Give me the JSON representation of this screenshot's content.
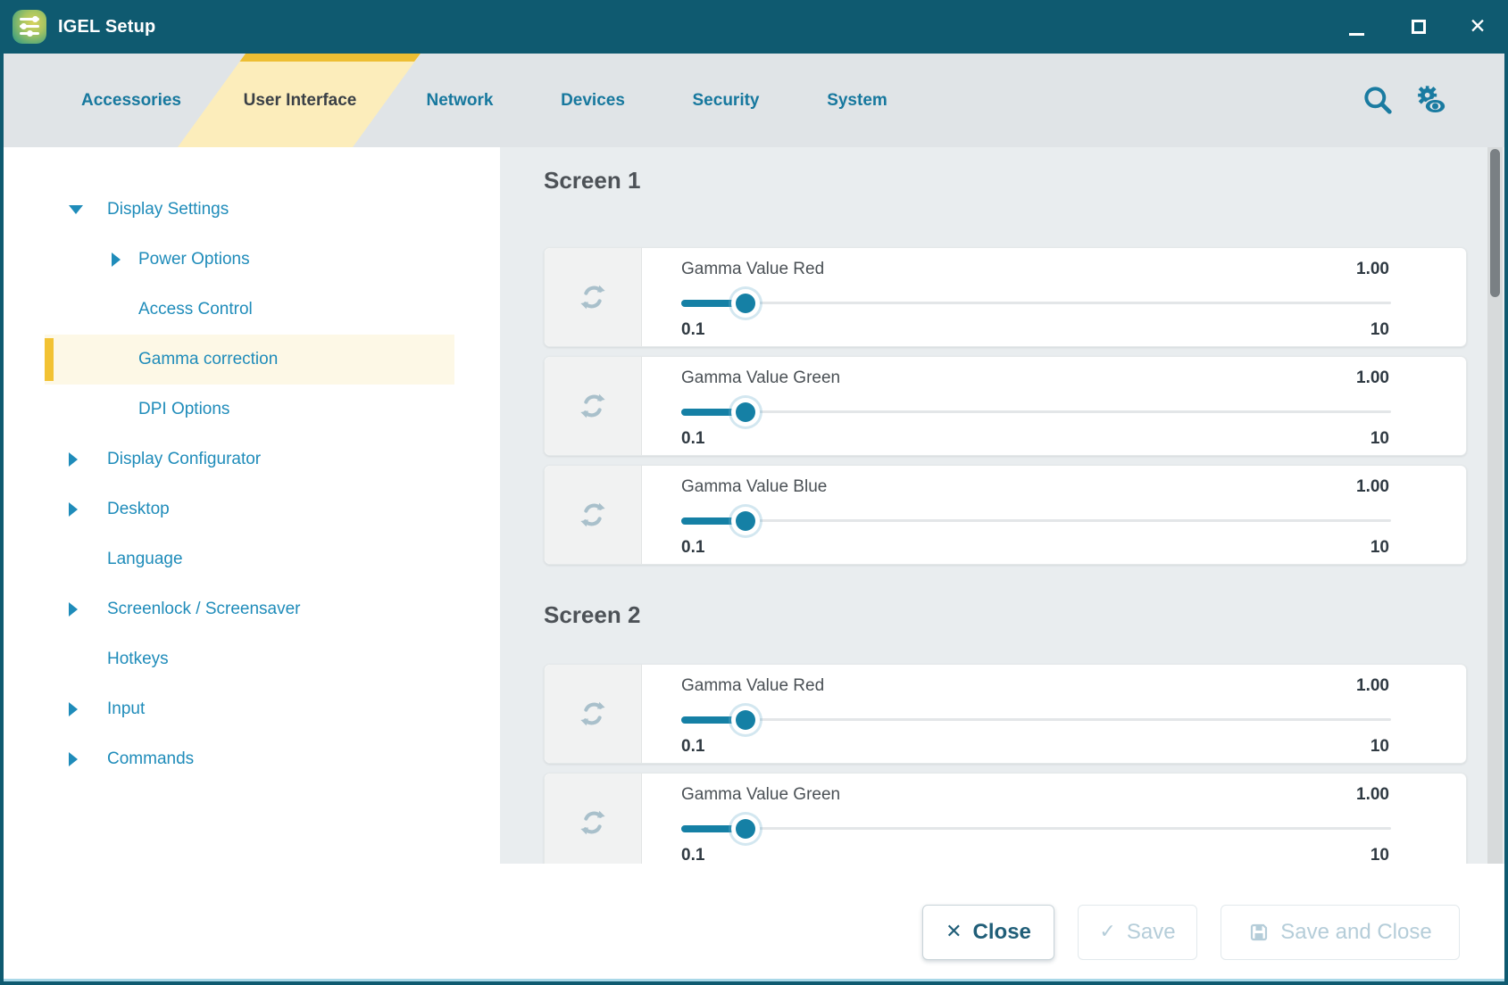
{
  "window": {
    "title": "IGEL Setup",
    "controls": [
      {
        "name": "minimize"
      },
      {
        "name": "maximize"
      },
      {
        "name": "close"
      }
    ]
  },
  "tabs": [
    {
      "label": "Accessories",
      "active": false
    },
    {
      "label": "User Interface",
      "active": true
    },
    {
      "label": "Network",
      "active": false
    },
    {
      "label": "Devices",
      "active": false
    },
    {
      "label": "Security",
      "active": false
    },
    {
      "label": "System",
      "active": false
    }
  ],
  "toolbar_icons": [
    {
      "name": "search-icon"
    },
    {
      "name": "view-settings-icon"
    }
  ],
  "sidebar": {
    "items": [
      {
        "label": "Display Settings",
        "level": 0,
        "arrow": "expanded",
        "selected": false
      },
      {
        "label": "Power Options",
        "level": 1,
        "arrow": "collapsed",
        "selected": false
      },
      {
        "label": "Access Control",
        "level": 1,
        "arrow": null,
        "selected": false
      },
      {
        "label": "Gamma correction",
        "level": 1,
        "arrow": null,
        "selected": true
      },
      {
        "label": "DPI Options",
        "level": 1,
        "arrow": null,
        "selected": false
      },
      {
        "label": "Display Configurator",
        "level": 0,
        "arrow": "collapsed",
        "selected": false
      },
      {
        "label": "Desktop",
        "level": 0,
        "arrow": "collapsed",
        "selected": false
      },
      {
        "label": "Language",
        "level": 0,
        "arrow": null,
        "selected": false
      },
      {
        "label": "Screenlock / Screensaver",
        "level": 0,
        "arrow": "collapsed",
        "selected": false
      },
      {
        "label": "Hotkeys",
        "level": 0,
        "arrow": null,
        "selected": false
      },
      {
        "label": "Input",
        "level": 0,
        "arrow": "collapsed",
        "selected": false
      },
      {
        "label": "Commands",
        "level": 0,
        "arrow": "collapsed",
        "selected": false
      }
    ]
  },
  "content": {
    "sections": [
      {
        "heading": "Screen 1",
        "sliders": [
          {
            "label": "Gamma Value Red",
            "value": "1.00",
            "min": "0.1",
            "max": "10",
            "value_num": 1.0,
            "min_num": 0.1,
            "max_num": 10
          },
          {
            "label": "Gamma Value Green",
            "value": "1.00",
            "min": "0.1",
            "max": "10",
            "value_num": 1.0,
            "min_num": 0.1,
            "max_num": 10
          },
          {
            "label": "Gamma Value Blue",
            "value": "1.00",
            "min": "0.1",
            "max": "10",
            "value_num": 1.0,
            "min_num": 0.1,
            "max_num": 10
          }
        ]
      },
      {
        "heading": "Screen 2",
        "sliders": [
          {
            "label": "Gamma Value Red",
            "value": "1.00",
            "min": "0.1",
            "max": "10",
            "value_num": 1.0,
            "min_num": 0.1,
            "max_num": 10
          },
          {
            "label": "Gamma Value Green",
            "value": "1.00",
            "min": "0.1",
            "max": "10",
            "value_num": 1.0,
            "min_num": 0.1,
            "max_num": 10
          }
        ]
      }
    ]
  },
  "footer": {
    "buttons": [
      {
        "label": "Close",
        "icon": "close",
        "enabled": true
      },
      {
        "label": "Save",
        "icon": "check",
        "enabled": false
      },
      {
        "label": "Save and Close",
        "icon": "save",
        "enabled": false
      }
    ]
  },
  "colors": {
    "titlebar": "#0f5a70",
    "accent_teal": "#1a7ba1",
    "tab_text": "#17789e",
    "tab_highlight": "#fcedbb",
    "tab_highlight_bar": "#edbe33",
    "sidebar_text": "#1f8cba",
    "selected_bg": "#fdf8e6",
    "selected_bar": "#f2c233",
    "slider_fill": "#1580a5",
    "disabled_text": "#b5cdd9"
  }
}
